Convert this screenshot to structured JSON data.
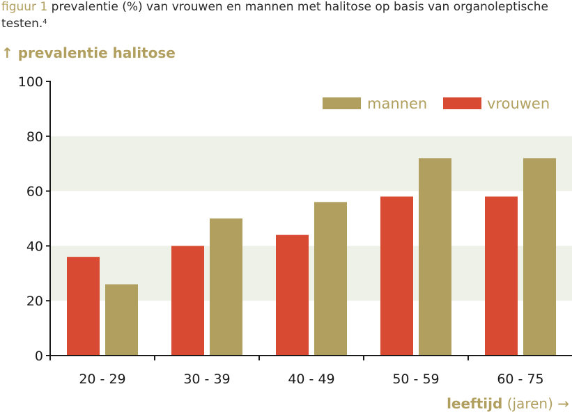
{
  "caption": {
    "label": "figuur 1",
    "text": "prevalentie (%) van vrouwen en mannen met halitose op basis van organoleptische testen.",
    "footnote": "4"
  },
  "colors": {
    "accent": "#b09f5f",
    "vrouwen": "#d94a32",
    "mannen": "#b09f5f",
    "band": "#eef1e8"
  },
  "chart_data": {
    "type": "bar",
    "ylabel": "↑ prevalentie halitose",
    "xlabel_bold": "leeftijd",
    "xlabel_rest": " (jaren) →",
    "categories": [
      "20 - 29",
      "30 - 39",
      "40 - 49",
      "50 - 59",
      "60 - 75"
    ],
    "series": [
      {
        "name": "vrouwen",
        "values": [
          36,
          40,
          44,
          58,
          58
        ],
        "color": "#d94a32"
      },
      {
        "name": "mannen",
        "values": [
          26,
          50,
          56,
          72,
          72
        ],
        "color": "#b09f5f"
      }
    ],
    "ylim": [
      0,
      100
    ],
    "yticks": [
      0,
      20,
      40,
      60,
      80,
      100
    ],
    "legend": {
      "placement": "top-right",
      "order": [
        "mannen",
        "vrouwen"
      ]
    }
  }
}
